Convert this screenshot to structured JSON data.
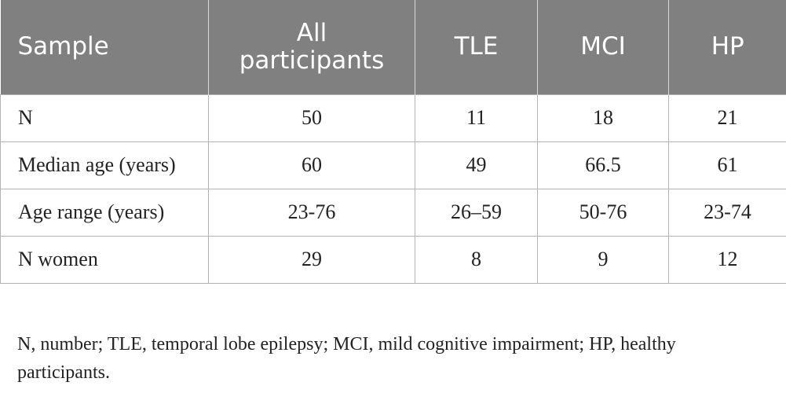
{
  "table": {
    "headers": [
      "Sample",
      "All participants",
      "TLE",
      "MCI",
      "HP"
    ],
    "rows": [
      [
        "N",
        "50",
        "11",
        "18",
        "21"
      ],
      [
        "Median age (years)",
        "60",
        "49",
        "66.5",
        "61"
      ],
      [
        "Age range (years)",
        "23-76",
        "26–59",
        "50-76",
        "23-74"
      ],
      [
        "N women",
        "29",
        "8",
        "9",
        "12"
      ]
    ]
  },
  "footnote": "N, number; TLE, temporal lobe epilepsy; MCI, mild cognitive impairment; HP, healthy participants.",
  "colors": {
    "header_bg": "#808080",
    "header_text": "#ffffff",
    "border": "#b3b3b3"
  }
}
